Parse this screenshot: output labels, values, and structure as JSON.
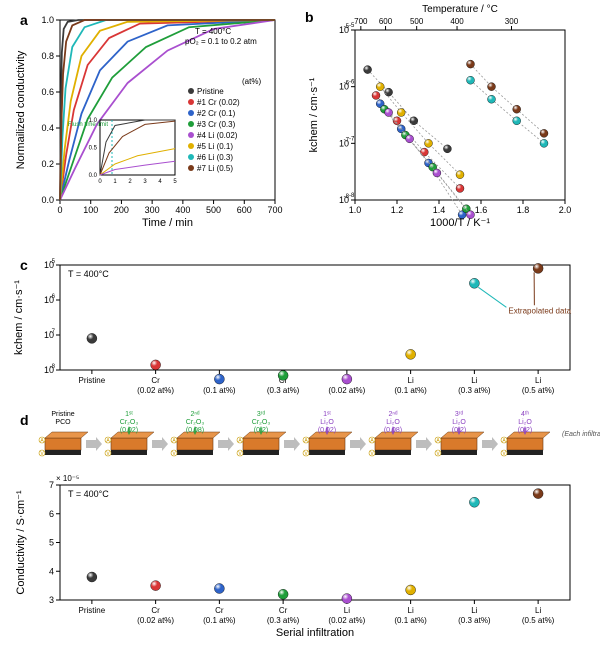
{
  "panelA": {
    "letter": "a",
    "type": "line",
    "title_note": "T = 400°C\npO₂ = 0.1 to 0.2 atm",
    "xlabel": "Time / min",
    "ylabel": "Normailized conductivity",
    "xlim": [
      0,
      700
    ],
    "xtick_step": 100,
    "ylim": [
      0.0,
      1.0
    ],
    "ytick_step": 0.2,
    "legend_header": "(at%)",
    "series": [
      {
        "name": "Pristine",
        "color": "#3a3a3a",
        "label": "Pristine"
      },
      {
        "name": "Cr1",
        "color": "#d93636",
        "label": "#1 Cr (0.02)"
      },
      {
        "name": "Cr2",
        "color": "#2e63c9",
        "label": "#2 Cr (0.1)"
      },
      {
        "name": "Cr3",
        "color": "#1f9e3a",
        "label": "#3 Cr (0.3)"
      },
      {
        "name": "Li4",
        "color": "#a94fcf",
        "label": "#4 Li (0.02)"
      },
      {
        "name": "Li5",
        "color": "#e0b000",
        "label": "#5 Li (0.1)"
      },
      {
        "name": "Li6",
        "color": "#1fb8b8",
        "label": "#6 Li (0.3)"
      },
      {
        "name": "Li7",
        "color": "#7a3a1a",
        "label": "#7 Li (0.5)"
      }
    ],
    "curves": {
      "Pristine": [
        [
          0,
          0
        ],
        [
          3,
          0.55
        ],
        [
          6,
          0.82
        ],
        [
          12,
          0.95
        ],
        [
          25,
          0.99
        ],
        [
          60,
          1.0
        ],
        [
          700,
          1.0
        ]
      ],
      "Li7": [
        [
          0,
          0
        ],
        [
          5,
          0.45
        ],
        [
          10,
          0.7
        ],
        [
          20,
          0.88
        ],
        [
          40,
          0.97
        ],
        [
          80,
          1.0
        ],
        [
          700,
          1.0
        ]
      ],
      "Li6": [
        [
          0,
          0
        ],
        [
          8,
          0.35
        ],
        [
          18,
          0.62
        ],
        [
          40,
          0.85
        ],
        [
          80,
          0.96
        ],
        [
          150,
          1.0
        ],
        [
          700,
          1.0
        ]
      ],
      "Li5": [
        [
          0,
          0
        ],
        [
          15,
          0.28
        ],
        [
          35,
          0.55
        ],
        [
          70,
          0.8
        ],
        [
          130,
          0.94
        ],
        [
          220,
          0.99
        ],
        [
          700,
          1.0
        ]
      ],
      "Cr1": [
        [
          0,
          0
        ],
        [
          20,
          0.25
        ],
        [
          45,
          0.5
        ],
        [
          90,
          0.75
        ],
        [
          160,
          0.9
        ],
        [
          260,
          0.98
        ],
        [
          700,
          1.0
        ]
      ],
      "Cr2": [
        [
          0,
          0
        ],
        [
          30,
          0.22
        ],
        [
          70,
          0.48
        ],
        [
          130,
          0.72
        ],
        [
          220,
          0.88
        ],
        [
          350,
          0.97
        ],
        [
          700,
          1.0
        ]
      ],
      "Cr3": [
        [
          0,
          0
        ],
        [
          40,
          0.2
        ],
        [
          90,
          0.45
        ],
        [
          170,
          0.68
        ],
        [
          280,
          0.85
        ],
        [
          420,
          0.96
        ],
        [
          700,
          1.0
        ]
      ],
      "Li4": [
        [
          0,
          0
        ],
        [
          50,
          0.18
        ],
        [
          120,
          0.42
        ],
        [
          220,
          0.65
        ],
        [
          350,
          0.83
        ],
        [
          500,
          0.95
        ],
        [
          700,
          1.0
        ]
      ]
    },
    "inset_label": "Flush time limit",
    "inset_xlim": [
      0,
      5
    ],
    "inset_ylim": [
      0,
      1.0
    ]
  },
  "panelB": {
    "letter": "b",
    "type": "scatter",
    "xlabel": "1000/T / K⁻¹",
    "ylabel": "kchem / cm·s⁻¹",
    "top_xlabel": "Temperature / °C",
    "top_ticks": [
      700,
      600,
      500,
      400,
      300
    ],
    "xlim": [
      1.0,
      2.0
    ],
    "xtick_step": 0.2,
    "ylim_log": [
      1e-08,
      1e-05
    ],
    "series": [
      {
        "color": "#3a3a3a",
        "pts": [
          [
            1.06,
            2e-06
          ],
          [
            1.16,
            8e-07
          ],
          [
            1.28,
            2.5e-07
          ],
          [
            1.44,
            8e-08
          ]
        ]
      },
      {
        "color": "#d93636",
        "pts": [
          [
            1.1,
            7e-07
          ],
          [
            1.2,
            2.5e-07
          ],
          [
            1.33,
            7e-08
          ],
          [
            1.5,
            1.6e-08
          ]
        ]
      },
      {
        "color": "#2e63c9",
        "pts": [
          [
            1.12,
            5e-07
          ],
          [
            1.22,
            1.8e-07
          ],
          [
            1.35,
            4.5e-08
          ],
          [
            1.51,
            5.5e-09
          ]
        ]
      },
      {
        "color": "#1f9e3a",
        "pts": [
          [
            1.14,
            4e-07
          ],
          [
            1.24,
            1.4e-07
          ],
          [
            1.37,
            3.8e-08
          ],
          [
            1.53,
            7e-09
          ]
        ]
      },
      {
        "color": "#a94fcf",
        "pts": [
          [
            1.16,
            3.5e-07
          ],
          [
            1.26,
            1.2e-07
          ],
          [
            1.39,
            3e-08
          ],
          [
            1.55,
            5.5e-09
          ]
        ]
      },
      {
        "color": "#e0b000",
        "pts": [
          [
            1.12,
            1e-06
          ],
          [
            1.22,
            3.5e-07
          ],
          [
            1.35,
            1e-07
          ],
          [
            1.5,
            2.8e-08
          ]
        ]
      },
      {
        "color": "#1fb8b8",
        "pts": [
          [
            1.55,
            1.3e-06
          ],
          [
            1.65,
            6e-07
          ],
          [
            1.77,
            2.5e-07
          ],
          [
            1.9,
            1e-07
          ]
        ]
      },
      {
        "color": "#7a3a1a",
        "pts": [
          [
            1.55,
            2.5e-06
          ],
          [
            1.65,
            1e-06
          ],
          [
            1.77,
            4e-07
          ],
          [
            1.9,
            1.5e-07
          ]
        ]
      }
    ],
    "dash_color": "#999999"
  },
  "panelC": {
    "letter": "c",
    "type": "scatter",
    "note": "T = 400°C",
    "ylabel": "kchem / cm·s⁻¹",
    "ylim_log": [
      1e-08,
      1e-05
    ],
    "extrapolated_note": "Extrapolated data",
    "categories": [
      "Pristine",
      "Cr\n(0.02 at%)",
      "Cr\n(0.1 at%)",
      "Cr\n(0.3 at%)",
      "Li\n(0.02 at%)",
      "Li\n(0.1 at%)",
      "Li\n(0.3 at%)",
      "Li\n(0.5 at%)"
    ],
    "points": [
      {
        "cat": 0,
        "y": 8e-08,
        "color": "#3a3a3a"
      },
      {
        "cat": 1,
        "y": 1.4e-08,
        "color": "#d93636"
      },
      {
        "cat": 2,
        "y": 5.5e-09,
        "color": "#2e63c9"
      },
      {
        "cat": 3,
        "y": 7e-09,
        "color": "#1f9e3a"
      },
      {
        "cat": 4,
        "y": 5.5e-09,
        "color": "#a94fcf"
      },
      {
        "cat": 5,
        "y": 2.8e-08,
        "color": "#e0b000"
      },
      {
        "cat": 6,
        "y": 3e-06,
        "color": "#1fb8b8",
        "extrap": true
      },
      {
        "cat": 7,
        "y": 8e-06,
        "color": "#7a3a1a",
        "extrap": true
      }
    ]
  },
  "panelD_cartoon": {
    "labels": [
      "Pristine PCO",
      "1ˢᵗ Cr₂O₃ (0.02)",
      "2ⁿᵈ Cr₂O₃ (0.08)",
      "3ʳᵈ Cr₂O₃ (0.2)",
      "1ˢᵗ Li₂O (0.02)",
      "2ⁿᵈ Li₂O (0.08)",
      "3ʳᵈ Li₂O (0.2)",
      "4ᵗʰ Li₂O (0.2)"
    ],
    "colors": [
      "#000000",
      "#1f9e3a",
      "#1f9e3a",
      "#1f9e3a",
      "#8a3fc0",
      "#8a3fc0",
      "#8a3fc0",
      "#8a3fc0"
    ],
    "side_note": "(Each infiltration amount)"
  },
  "panelD": {
    "letter": "d",
    "type": "scatter",
    "note": "T = 400°C",
    "ylabel": "Conductivity / S·cm⁻¹",
    "xlabel": "Serial infiltration",
    "yprefix": "× 10⁻⁵",
    "ylim": [
      3.0,
      7.0
    ],
    "ytick_step": 1.0,
    "categories": [
      "Pristine",
      "Cr\n(0.02 at%)",
      "Cr\n(0.1 at%)",
      "Cr\n(0.3 at%)",
      "Li\n(0.02 at%)",
      "Li\n(0.1 at%)",
      "Li\n(0.3 at%)",
      "Li\n(0.5 at%)"
    ],
    "points": [
      {
        "cat": 0,
        "y": 3.8,
        "color": "#3a3a3a"
      },
      {
        "cat": 1,
        "y": 3.5,
        "color": "#d93636"
      },
      {
        "cat": 2,
        "y": 3.4,
        "color": "#2e63c9"
      },
      {
        "cat": 3,
        "y": 3.2,
        "color": "#1f9e3a"
      },
      {
        "cat": 4,
        "y": 3.05,
        "color": "#a94fcf"
      },
      {
        "cat": 5,
        "y": 3.35,
        "color": "#e0b000"
      },
      {
        "cat": 6,
        "y": 6.4,
        "color": "#1fb8b8"
      },
      {
        "cat": 7,
        "y": 6.7,
        "color": "#7a3a1a"
      }
    ]
  },
  "style": {
    "marker_radius": 5,
    "marker_stroke": "#000000",
    "axis_color": "#000000",
    "font_axis": 11,
    "font_tick": 9
  }
}
